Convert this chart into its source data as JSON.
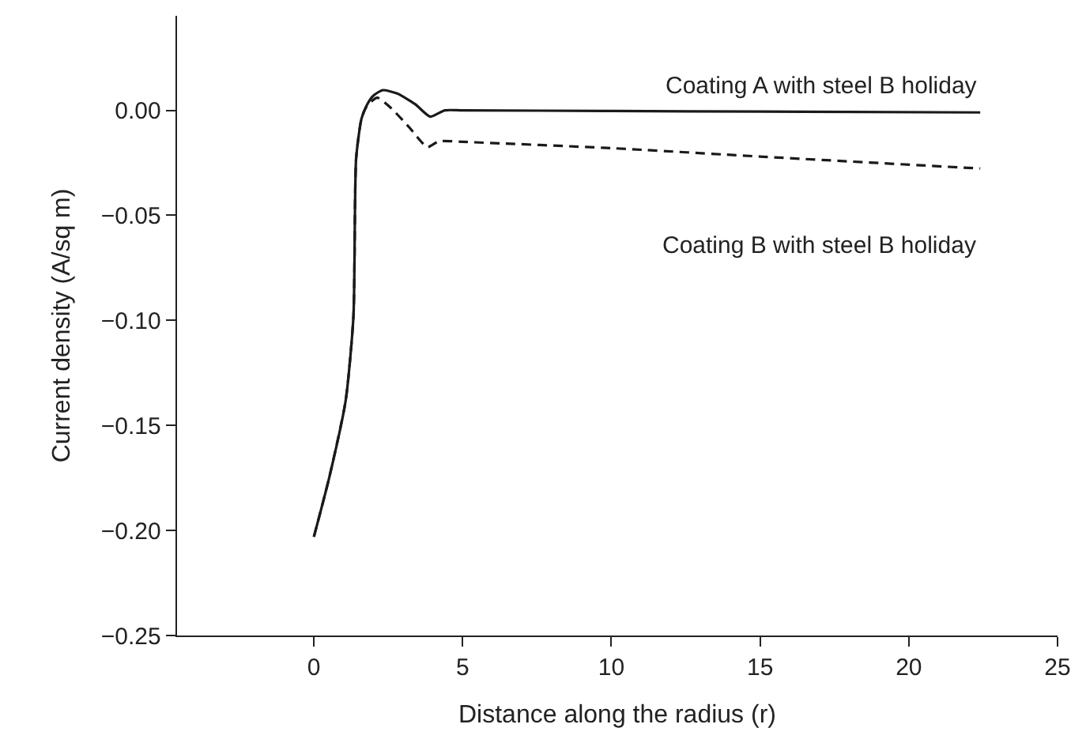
{
  "chart_data": {
    "type": "line",
    "xlabel": "Distance along the radius (r)",
    "ylabel": "Current density (A/sq m)",
    "xlim": [
      -4.6,
      25
    ],
    "xticks": [
      0,
      5,
      10,
      15,
      20,
      25
    ],
    "ylim": [
      -0.25,
      0.045
    ],
    "yticks": [
      {
        "value": 0,
        "label": "0.00"
      },
      {
        "value": -0.05,
        "label": "−0.05"
      },
      {
        "value": -0.1,
        "label": "−0.10"
      },
      {
        "value": -0.15,
        "label": "−0.15"
      },
      {
        "value": -0.2,
        "label": "−0.20"
      },
      {
        "value": -0.25,
        "label": "−0.25"
      }
    ],
    "legend": false,
    "marker": "none",
    "series": [
      {
        "name": "Coating A with steel B holiday",
        "color": "#1a1a1a",
        "line_style": "solid",
        "x": [
          0,
          0.53,
          1.07,
          1.33,
          1.42,
          1.6,
          1.78,
          2.0,
          2.31,
          2.8,
          3.4,
          3.91,
          4.4,
          5,
          10,
          15,
          22.4
        ],
        "values": [
          -0.203,
          -0.174,
          -0.138,
          -0.098,
          -0.023,
          -0.004,
          0.0025,
          0.007,
          0.0096,
          0.008,
          0.003,
          -0.003,
          0.0,
          0.0,
          -0.0003,
          -0.0006,
          -0.001
        ]
      },
      {
        "name": "Coating B with steel B holiday",
        "color": "#1a1a1a",
        "line_style": "dashed",
        "x": [
          0,
          0.53,
          1.07,
          1.33,
          1.42,
          1.6,
          1.78,
          2.13,
          2.6,
          3.2,
          3.82,
          4.2,
          5,
          10,
          15,
          22.4
        ],
        "values": [
          -0.203,
          -0.174,
          -0.138,
          -0.098,
          -0.023,
          -0.004,
          0.002,
          0.006,
          0.001,
          -0.008,
          -0.0175,
          -0.0147,
          -0.015,
          -0.018,
          -0.022,
          -0.0277
        ]
      }
    ]
  }
}
